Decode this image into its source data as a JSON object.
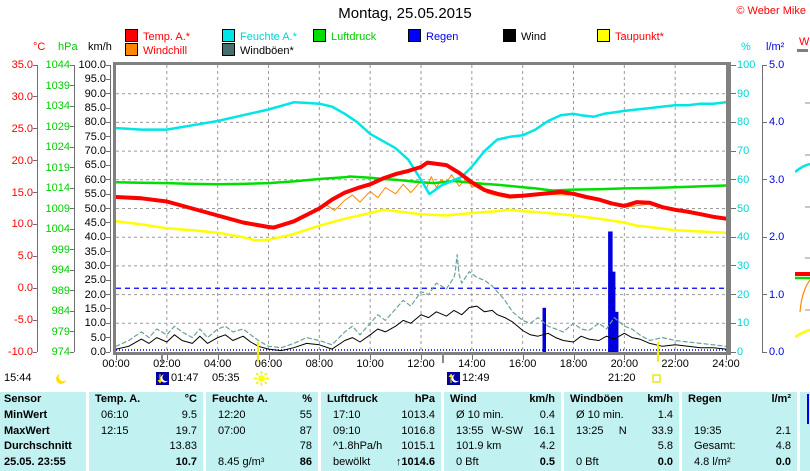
{
  "header": {
    "title": "Montag, 25.05.2015",
    "copyright": "© Weber Mike"
  },
  "legend": {
    "items": [
      {
        "label": "Temp. A.*",
        "square": "#ff0000",
        "text_color": "#ff0000",
        "row": 0,
        "col": 0
      },
      {
        "label": "Windchill",
        "square": "#ff8800",
        "text_color": "#ff0000",
        "row": 1,
        "col": 0
      },
      {
        "label": "Feuchte A.*",
        "square": "#00e5e5",
        "text_color": "#00d5d5",
        "row": 0,
        "col": 1
      },
      {
        "label": "Windböen*",
        "square": "#456f6f",
        "text_color": "#000000",
        "row": 1,
        "col": 1
      },
      {
        "label": "Luftdruck",
        "square": "#00dd00",
        "text_color": "#00cc00",
        "row": 0,
        "col": 2
      },
      {
        "label": "Regen",
        "square": "#0000ff",
        "text_color": "#0000ee",
        "row": 0,
        "col": 3
      },
      {
        "label": "Wind",
        "square": "#000000",
        "text_color": "#000000",
        "row": 0,
        "col": 4
      },
      {
        "label": "Taupunkt*",
        "square": "#ffff00",
        "text_color": "#ff0000",
        "row": 0,
        "col": 5
      }
    ]
  },
  "axes": {
    "units": {
      "c": "°C",
      "hpa": "hPa",
      "kmh": "km/h",
      "pct": "%",
      "lm2": "l/m²"
    },
    "defs": [
      {
        "id": "c",
        "color": "#ff0000",
        "min": -10,
        "max": 35,
        "step": 5,
        "decimals": 1
      },
      {
        "id": "hpa",
        "color": "#00cc00",
        "min": 974,
        "max": 1044,
        "step": 5,
        "decimals": 0
      },
      {
        "id": "kmh",
        "color": "#000000",
        "min": 0,
        "max": 100,
        "step": 5,
        "decimals": 1
      },
      {
        "id": "pct",
        "color": "#00d5d5",
        "min": 0,
        "max": 100,
        "step": 10,
        "decimals": 0
      },
      {
        "id": "lm2",
        "color": "#0000dd",
        "min": 0,
        "max": 5,
        "step": 1,
        "decimals": 1
      }
    ]
  },
  "time_axis": {
    "labels": [
      "00:00",
      "02:00",
      "04:00",
      "06:00",
      "08:00",
      "10:00",
      "12:00",
      "14:00",
      "16:00",
      "18:00",
      "20:00",
      "22:00",
      "24:00"
    ]
  },
  "astro": {
    "events": [
      {
        "time": "15:44",
        "icon": "moon"
      },
      {
        "time": "01:47",
        "icon": "moonset"
      },
      {
        "time": "05:35",
        "icon": "sunrise"
      },
      {
        "time": "12:49",
        "icon": "moonrise"
      },
      {
        "time": "21:20",
        "icon": "sunset"
      }
    ]
  },
  "sliver": {
    "label": "W"
  },
  "chart_data": {
    "type": "line",
    "title": "Montag, 25.05.2015",
    "x_axis": {
      "label": "time",
      "range_hours": [
        0,
        24
      ],
      "tick_step_hours": 2
    },
    "grid": {
      "h_every_kmh": 10,
      "v_every_hours": 2,
      "frost_line_c": 0
    },
    "series": [
      {
        "name": "Windböen",
        "axis": "kmh",
        "color": "#6e9e9e",
        "width": 1.2,
        "dash": "4 3",
        "x": [
          0,
          0.5,
          1,
          1.3,
          1.6,
          2,
          2.3,
          2.6,
          3,
          3.3,
          3.6,
          4,
          4.3,
          4.6,
          5,
          5.3,
          5.6,
          6,
          6.5,
          7,
          7.5,
          8,
          8.5,
          9,
          9.3,
          9.6,
          10,
          10.3,
          10.6,
          11,
          11.3,
          11.6,
          12,
          12.3,
          12.6,
          13,
          13.3,
          13.35,
          13.42,
          13.5,
          13.6,
          13.9,
          14.2,
          14.5,
          14.8,
          15,
          15.3,
          15.6,
          16,
          16.3,
          16.6,
          17,
          17.3,
          17.6,
          18,
          18.3,
          18.6,
          19,
          19.3,
          19.6,
          20,
          20.3,
          20.6,
          21,
          21.5,
          22,
          22.5,
          23,
          23.5,
          24
        ],
        "v": [
          2,
          4,
          7,
          5,
          8,
          6,
          9,
          7,
          5,
          8,
          5,
          8,
          9,
          7,
          8,
          6,
          4,
          2,
          1.5,
          3,
          5,
          4,
          2.5,
          7,
          9,
          6,
          10,
          13,
          11,
          15,
          18,
          16,
          21,
          20,
          24,
          22,
          26,
          28,
          33.9,
          27,
          24,
          28,
          26,
          25,
          23,
          21,
          18,
          14,
          11,
          10,
          12,
          9,
          8,
          7,
          10,
          8,
          7.5,
          10,
          8,
          12,
          9,
          8,
          6,
          4,
          5,
          4,
          3.5,
          3,
          2.5,
          2
        ]
      },
      {
        "name": "Wind",
        "axis": "kmh",
        "color": "#000000",
        "width": 1,
        "dash": "",
        "x": [
          0,
          0.5,
          1,
          1.3,
          1.6,
          2,
          2.3,
          2.6,
          3,
          3.3,
          3.6,
          4,
          4.3,
          4.6,
          5,
          5.3,
          5.6,
          6,
          6.5,
          7,
          7.5,
          8,
          8.5,
          9,
          9.3,
          9.6,
          10,
          10.3,
          10.6,
          11,
          11.3,
          11.6,
          12,
          12.3,
          12.6,
          13,
          13.3,
          13.6,
          13.9,
          14.2,
          14.5,
          14.8,
          15,
          15.3,
          15.6,
          16,
          16.3,
          16.6,
          17,
          17.3,
          17.6,
          18,
          18.3,
          18.6,
          19,
          19.3,
          19.6,
          20,
          20.3,
          20.6,
          21,
          21.5,
          22,
          22.5,
          23,
          23.5,
          24
        ],
        "v": [
          1,
          2,
          4.5,
          3,
          5,
          3.5,
          6,
          4,
          3,
          5.5,
          3,
          5,
          6,
          4,
          5.5,
          3.5,
          2,
          1,
          0.5,
          1.5,
          3,
          2.5,
          1,
          4,
          5,
          3.5,
          6,
          8,
          7,
          9,
          11,
          10,
          13,
          12,
          14,
          12.5,
          14.5,
          13,
          15.5,
          16,
          14,
          14.5,
          13,
          12,
          10.5,
          7.5,
          6,
          5.5,
          6.5,
          5,
          4,
          3.5,
          5.5,
          4.5,
          4,
          5.5,
          4.5,
          6.5,
          5,
          4.5,
          3,
          2,
          2.5,
          2,
          1.5,
          1.5,
          1
        ]
      },
      {
        "name": "Taupunkt",
        "axis": "c",
        "color": "#ffff00",
        "width": 2.5,
        "dash": "",
        "x": [
          0,
          1,
          2,
          3,
          4,
          5,
          5.5,
          6,
          7,
          8,
          9,
          10,
          10.5,
          11,
          12,
          13,
          13.5,
          14,
          15,
          15.5,
          16,
          17,
          17.5,
          18,
          19,
          20,
          20.5,
          21,
          22,
          23,
          24
        ],
        "v": [
          10.5,
          10.0,
          9.4,
          9.1,
          8.7,
          8.0,
          7.5,
          7.6,
          8.5,
          9.8,
          10.9,
          11.8,
          12.3,
          12.1,
          11.6,
          11.4,
          11.6,
          11.8,
          12.1,
          12.3,
          12.1,
          11.8,
          11.6,
          11.4,
          10.9,
          10.3,
          9.8,
          9.6,
          9.1,
          8.9,
          8.7
        ]
      },
      {
        "name": "Windchill",
        "axis": "c",
        "color": "#ff8800",
        "width": 1,
        "dash": "",
        "x": [
          0,
          1,
          2,
          3,
          4,
          5,
          6,
          7,
          8,
          8.3,
          8.6,
          9,
          9.3,
          9.6,
          10,
          10.3,
          10.6,
          11,
          11.3,
          11.6,
          12,
          12.2,
          12.4,
          12.6,
          12.8,
          13,
          13.2,
          13.5,
          13.8,
          14,
          14.3,
          14.6,
          15,
          15.5,
          16,
          17,
          18,
          19,
          20,
          21,
          22,
          23,
          24
        ],
        "v": [
          14.3,
          14.1,
          13.6,
          12.5,
          11.4,
          10.3,
          9.6,
          10.5,
          12.3,
          13.0,
          12.2,
          13.8,
          14.6,
          13.5,
          15.2,
          14.2,
          15.8,
          14.8,
          16.3,
          15.0,
          16.8,
          15.5,
          17.5,
          15.8,
          17.0,
          16.5,
          17.8,
          16.0,
          17.2,
          15.8,
          16.4,
          14.9,
          14.5,
          14.1,
          14.3,
          14.7,
          14.6,
          13.7,
          12.7,
          13.2,
          12.1,
          11.4,
          10.7
        ]
      },
      {
        "name": "Luftdruck",
        "axis": "hpa",
        "color": "#00dd00",
        "width": 2.5,
        "dash": "",
        "x": [
          0,
          1,
          2,
          3,
          4,
          5,
          6,
          7,
          8,
          9,
          9.2,
          10,
          10.5,
          11,
          12,
          12.5,
          13,
          13.3,
          14,
          14.5,
          15,
          16,
          16.5,
          17,
          17.2,
          18,
          19,
          20,
          21,
          22,
          23,
          24
        ],
        "v": [
          1015.4,
          1015.3,
          1015.2,
          1015.0,
          1014.9,
          1015.0,
          1015.2,
          1015.6,
          1016.2,
          1016.6,
          1016.8,
          1016.5,
          1016.2,
          1016.0,
          1015.4,
          1015.2,
          1015.5,
          1015.7,
          1015.3,
          1015.0,
          1014.8,
          1014.2,
          1013.9,
          1013.5,
          1013.4,
          1013.6,
          1013.7,
          1013.9,
          1014.0,
          1014.2,
          1014.4,
          1014.6
        ]
      },
      {
        "name": "Feuchte A.",
        "axis": "pct",
        "color": "#00e5e5",
        "width": 2.5,
        "dash": "",
        "x": [
          0,
          1,
          2,
          3,
          4,
          5,
          6,
          7,
          7.5,
          8,
          8.5,
          9,
          9.5,
          10,
          10.5,
          11,
          11.5,
          12,
          12.33,
          12.8,
          13.2,
          13.6,
          14,
          14.5,
          15,
          15.5,
          16,
          16.5,
          17,
          17.5,
          18,
          18.3,
          18.8,
          19.2,
          19.6,
          20,
          20.5,
          21,
          21.5,
          22,
          22.5,
          23,
          23.5,
          24
        ],
        "v": [
          78,
          77.5,
          77.5,
          79,
          80.5,
          82.5,
          84.5,
          87,
          86.8,
          86.5,
          85.5,
          83,
          80,
          76,
          73.5,
          71,
          67,
          60,
          55,
          58,
          59.5,
          61,
          64.5,
          70,
          74,
          75,
          75.5,
          77.5,
          80.5,
          82.5,
          83,
          82.5,
          82,
          83,
          83.5,
          84,
          84.5,
          85,
          85.5,
          86,
          86,
          86.5,
          86.5,
          87
        ]
      },
      {
        "name": "Temp. A.",
        "axis": "c",
        "color": "#ff0000",
        "width": 4,
        "dash": "",
        "x": [
          0,
          1,
          2,
          3,
          4,
          5,
          6,
          6.2,
          7,
          8,
          8.5,
          9,
          9.5,
          10,
          10.5,
          11,
          11.5,
          12,
          12.25,
          13,
          13.5,
          14,
          14.5,
          15,
          15.5,
          16,
          16.5,
          17,
          17.5,
          18,
          18.5,
          19,
          19.5,
          20,
          20.5,
          21,
          21.5,
          22,
          22.5,
          23,
          23.5,
          24
        ],
        "v": [
          14.3,
          14.1,
          13.6,
          12.5,
          11.4,
          10.3,
          9.6,
          9.5,
          10.5,
          12.5,
          13.9,
          15.0,
          15.7,
          16.3,
          17.2,
          17.9,
          18.4,
          19.0,
          19.7,
          19.3,
          18.1,
          16.6,
          15.4,
          14.8,
          14.4,
          14.5,
          14.7,
          14.9,
          15.1,
          14.8,
          14.3,
          13.9,
          13.3,
          12.9,
          13.5,
          13.4,
          12.7,
          12.3,
          12.0,
          11.6,
          11.2,
          10.9
        ]
      }
    ],
    "rain_bars": {
      "axis": "lm2",
      "color": "#0000e0",
      "bars": [
        {
          "h": 16.85,
          "v": 0.77
        },
        {
          "h": 19.45,
          "v": 2.1
        },
        {
          "h": 19.58,
          "v": 1.4
        },
        {
          "h": 19.7,
          "v": 0.7
        }
      ]
    },
    "astro_marks": {
      "sun_hours": [
        5.583,
        21.333
      ],
      "moon_hours": [
        1.783,
        12.817
      ]
    }
  },
  "table": {
    "row_labels": [
      "Sensor",
      "MinWert",
      "MaxWert",
      "Durchschnitt",
      "25.05. 23:55"
    ],
    "columns": [
      {
        "header": "Temp. A.",
        "unit": "°C",
        "rows": [
          {
            "l": "06:10",
            "r": "9.5"
          },
          {
            "l": "12:15",
            "r": "19.7"
          },
          {
            "l": "",
            "r": "13.83"
          },
          {
            "l": "",
            "r": "10.7"
          }
        ]
      },
      {
        "header": "Feuchte A.",
        "unit": "%",
        "rows": [
          {
            "l": "12:20",
            "r": "55"
          },
          {
            "l": "07:00",
            "r": "87"
          },
          {
            "l": "",
            "r": "78"
          },
          {
            "l": "8.45 g/m³",
            "r": "86"
          }
        ]
      },
      {
        "header": "Luftdruck",
        "unit": "hPa",
        "rows": [
          {
            "l": "17:10",
            "r": "1013.4"
          },
          {
            "l": "09:10",
            "r": "1016.8"
          },
          {
            "l": "^1.8hPa/h",
            "r": "1015.1"
          },
          {
            "l": "bewölkt",
            "r": "↑1014.6"
          }
        ]
      },
      {
        "header": "Wind",
        "unit": "km/h",
        "rows": [
          {
            "l": "Ø 10 min.",
            "r": "0.4"
          },
          {
            "l": "13:55",
            "m": "W-SW",
            "r": "16.1"
          },
          {
            "l": "101.9 km",
            "r": "4.2"
          },
          {
            "l": "0 Bft",
            "r": "0.5"
          }
        ]
      },
      {
        "header": "Windböen",
        "unit": "km/h",
        "rows": [
          {
            "l": "Ø 10 min.",
            "r": "1.4"
          },
          {
            "l": "13:25",
            "m": "N",
            "r": "33.9"
          },
          {
            "l": "",
            "r": "5.8"
          },
          {
            "l": "0 Bft",
            "r": "0.0"
          }
        ]
      },
      {
        "header": "Regen",
        "unit": "l/m²",
        "rows": [
          {
            "l": "",
            "r": ""
          },
          {
            "l": "19:35",
            "r": "2.1"
          },
          {
            "l": "Gesamt:",
            "r": "4.8"
          },
          {
            "l": "4.8 l/m²",
            "r": "0.0"
          }
        ]
      }
    ]
  }
}
